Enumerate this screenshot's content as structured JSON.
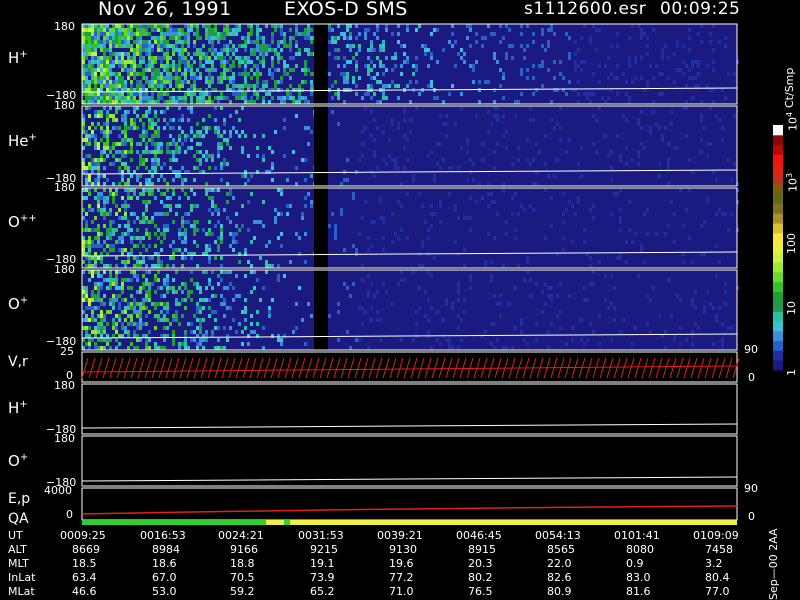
{
  "header": {
    "date": "Nov 26, 1991",
    "instrument": "EXOS-D SMS",
    "file": "s1112600.esr",
    "time": "00:09:25"
  },
  "colorbar": {
    "unit": "Ct/Smp",
    "ticks": [
      {
        "label": "1",
        "value": 1
      },
      {
        "label": "10",
        "value": 10
      },
      {
        "label": "100",
        "value": 100
      },
      {
        "label": "10",
        "sup": "3",
        "value": 1000
      },
      {
        "label": "10",
        "sup": "4",
        "value": 10000
      }
    ],
    "colors": [
      "#1a1a80",
      "#1f2ea0",
      "#2a5ec8",
      "#3a8ee0",
      "#3cc0d8",
      "#2cbfa0",
      "#1f9a50",
      "#1ca030",
      "#3cbf2c",
      "#6ad830",
      "#9ae838",
      "#c8f040",
      "#e8f048",
      "#f8e840",
      "#d8c030",
      "#a89028",
      "#807020",
      "#606818",
      "#786010",
      "#c03020",
      "#e02010",
      "#f01010",
      "#b80808",
      "#880808",
      "#ffffff"
    ]
  },
  "panels": {
    "hplus": {
      "label": "H",
      "sup": "+",
      "ymax": "180",
      "ymin": "−180"
    },
    "heplus": {
      "label": "He",
      "sup": "+",
      "ymax": "180",
      "ymin": "−180"
    },
    "oplusplus": {
      "label": "O",
      "sup": "++",
      "ymax": "180",
      "ymin": "−180"
    },
    "oplus": {
      "label": "O",
      "sup": "+",
      "ymax": "180",
      "ymin": "−180"
    },
    "vr": {
      "label": "V,r",
      "ymax": "25",
      "ymin": "0",
      "right_max": "90",
      "right_min": "0"
    },
    "hplus2": {
      "label": "H",
      "sup": "+",
      "ymax": "180",
      "ymin": "−180"
    },
    "oplus2": {
      "label": "O",
      "sup": "+",
      "ymax": "180",
      "ymin": "−180"
    },
    "ep": {
      "label": "E,p",
      "ymax": "4000",
      "ymin": "0",
      "right_max": "90",
      "right_min": "0"
    },
    "qa": {
      "label": "QA"
    }
  },
  "time_axis": {
    "rows": [
      {
        "label": "UT",
        "values": [
          "0009:25",
          "0016:53",
          "0024:21",
          "0031:53",
          "0039:21",
          "0046:45",
          "0054:13",
          "0101:41",
          "0109:09"
        ]
      },
      {
        "label": "ALT",
        "values": [
          "8669",
          "8984",
          "9166",
          "9215",
          "9130",
          "8915",
          "8565",
          "8080",
          "7458"
        ]
      },
      {
        "label": "MLT",
        "values": [
          "18.5",
          "18.6",
          "18.8",
          "19.1",
          "19.6",
          "20.3",
          "22.0",
          "0.9",
          "3.2"
        ]
      },
      {
        "label": "InLat",
        "values": [
          "63.4",
          "67.0",
          "70.5",
          "73.9",
          "77.2",
          "80.2",
          "82.6",
          "83.0",
          "80.4"
        ]
      },
      {
        "label": "MLat",
        "values": [
          "46.6",
          "53.0",
          "59.2",
          "65.2",
          "71.0",
          "76.5",
          "80.9",
          "81.6",
          "77.0"
        ]
      }
    ],
    "footnote": "Sep—00 2AA"
  },
  "chart_data": {
    "type": "heatmap",
    "title": "Nov 26, 1991   EXOS-D SMS",
    "x_ticks": [
      "0009:25",
      "0016:53",
      "0024:21",
      "0031:53",
      "0039:21",
      "0046:45",
      "0054:13",
      "0101:41",
      "0109:09"
    ],
    "colorbar_scale": "log",
    "colorbar_range": [
      1,
      10000
    ],
    "colorbar_unit": "Ct/Smp",
    "series": [
      {
        "name": "H+",
        "ylim": [
          -180,
          180
        ]
      },
      {
        "name": "He+",
        "ylim": [
          -180,
          180
        ]
      },
      {
        "name": "O++",
        "ylim": [
          -180,
          180
        ]
      },
      {
        "name": "O+",
        "ylim": [
          -180,
          180
        ]
      },
      {
        "name": "V,r",
        "ylim": [
          0,
          25
        ],
        "right_ylim": [
          0,
          90
        ]
      },
      {
        "name": "H+",
        "ylim": [
          -180,
          180
        ]
      },
      {
        "name": "O+",
        "ylim": [
          -180,
          180
        ]
      },
      {
        "name": "E,p",
        "ylim": [
          0,
          4000
        ],
        "right_ylim": [
          0,
          90
        ]
      }
    ]
  }
}
